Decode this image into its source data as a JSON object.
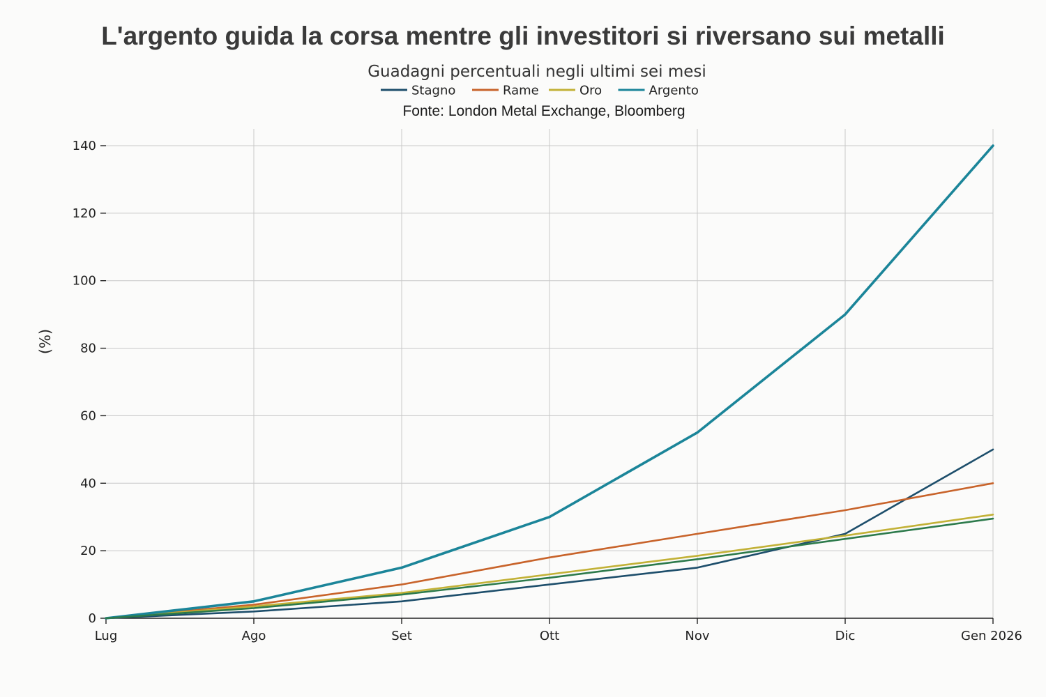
{
  "chart_data": {
    "type": "line",
    "title": "L'argento guida la corsa mentre gli investitori si riversano sui metalli",
    "subtitle": "Guadagni percentuali negli ultimi sei mesi",
    "source": "Fonte: London Metal Exchange, Bloomberg",
    "xlabel": "",
    "ylabel": "(%)",
    "categories": [
      "Lug",
      "Ago",
      "Set",
      "Ott",
      "Nov",
      "Dic",
      "Gen 2026"
    ],
    "ylim": [
      0,
      140
    ],
    "yticks": [
      0,
      20,
      40,
      60,
      80,
      100,
      120,
      140
    ],
    "grid": true,
    "legend_position": "top-center",
    "series": [
      {
        "name": "Stagno",
        "color": "#1d4e6b",
        "values": [
          0,
          2,
          5,
          10,
          15,
          25,
          50
        ]
      },
      {
        "name": "Rame",
        "color": "#c8632a",
        "values": [
          0,
          4,
          10,
          18,
          25,
          32,
          40
        ]
      },
      {
        "name": "Oro",
        "color": "#c2b136",
        "values": [
          0,
          3.5,
          7.5,
          13,
          18.5,
          24.5,
          30.7
        ]
      },
      {
        "name": "Argento",
        "color": "#1b8599",
        "values": [
          0,
          5,
          15,
          30,
          55,
          90,
          140
        ]
      },
      {
        "name": "",
        "color": "#2c7a4b",
        "values": [
          0,
          3,
          7,
          12,
          17.5,
          23.5,
          29.5
        ]
      }
    ]
  }
}
